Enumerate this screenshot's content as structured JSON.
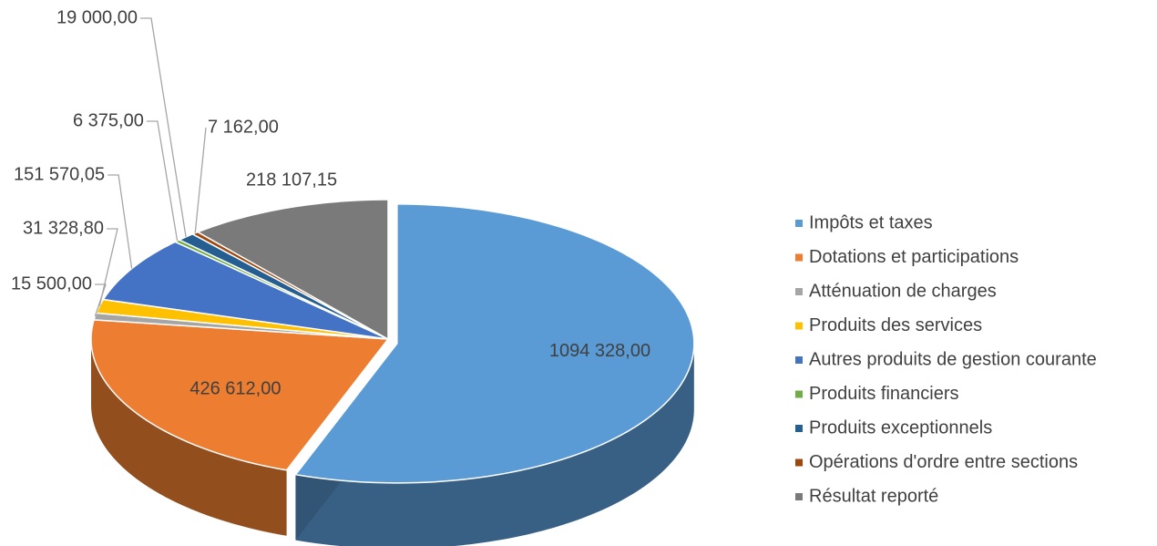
{
  "chart_data": {
    "type": "pie",
    "categories": [
      "Impôts et taxes",
      "Dotations et participations",
      "Atténuation de charges",
      "Produits des services",
      "Autres produits de gestion courante",
      "Produits financiers",
      "Produits exceptionnels",
      "Opérations d'ordre entre sections",
      "Résultat reporté"
    ],
    "values": [
      1094328,
      426612,
      15500,
      31328.8,
      151570.05,
      6375,
      19000,
      7162,
      218107.15
    ],
    "value_labels": [
      "1094 328,00",
      "426 612,00",
      "15 500,00",
      "31 328,80",
      "151 570,05",
      "6 375,00",
      "19 000,00",
      "7 162,00",
      "218 107,15"
    ],
    "colors": [
      "#5b9bd5",
      "#ed7d31",
      "#a5a5a5",
      "#ffc000",
      "#4472c4",
      "#70ad47",
      "#255e91",
      "#9e480e",
      "#7a7a7a"
    ],
    "legend": "right"
  }
}
